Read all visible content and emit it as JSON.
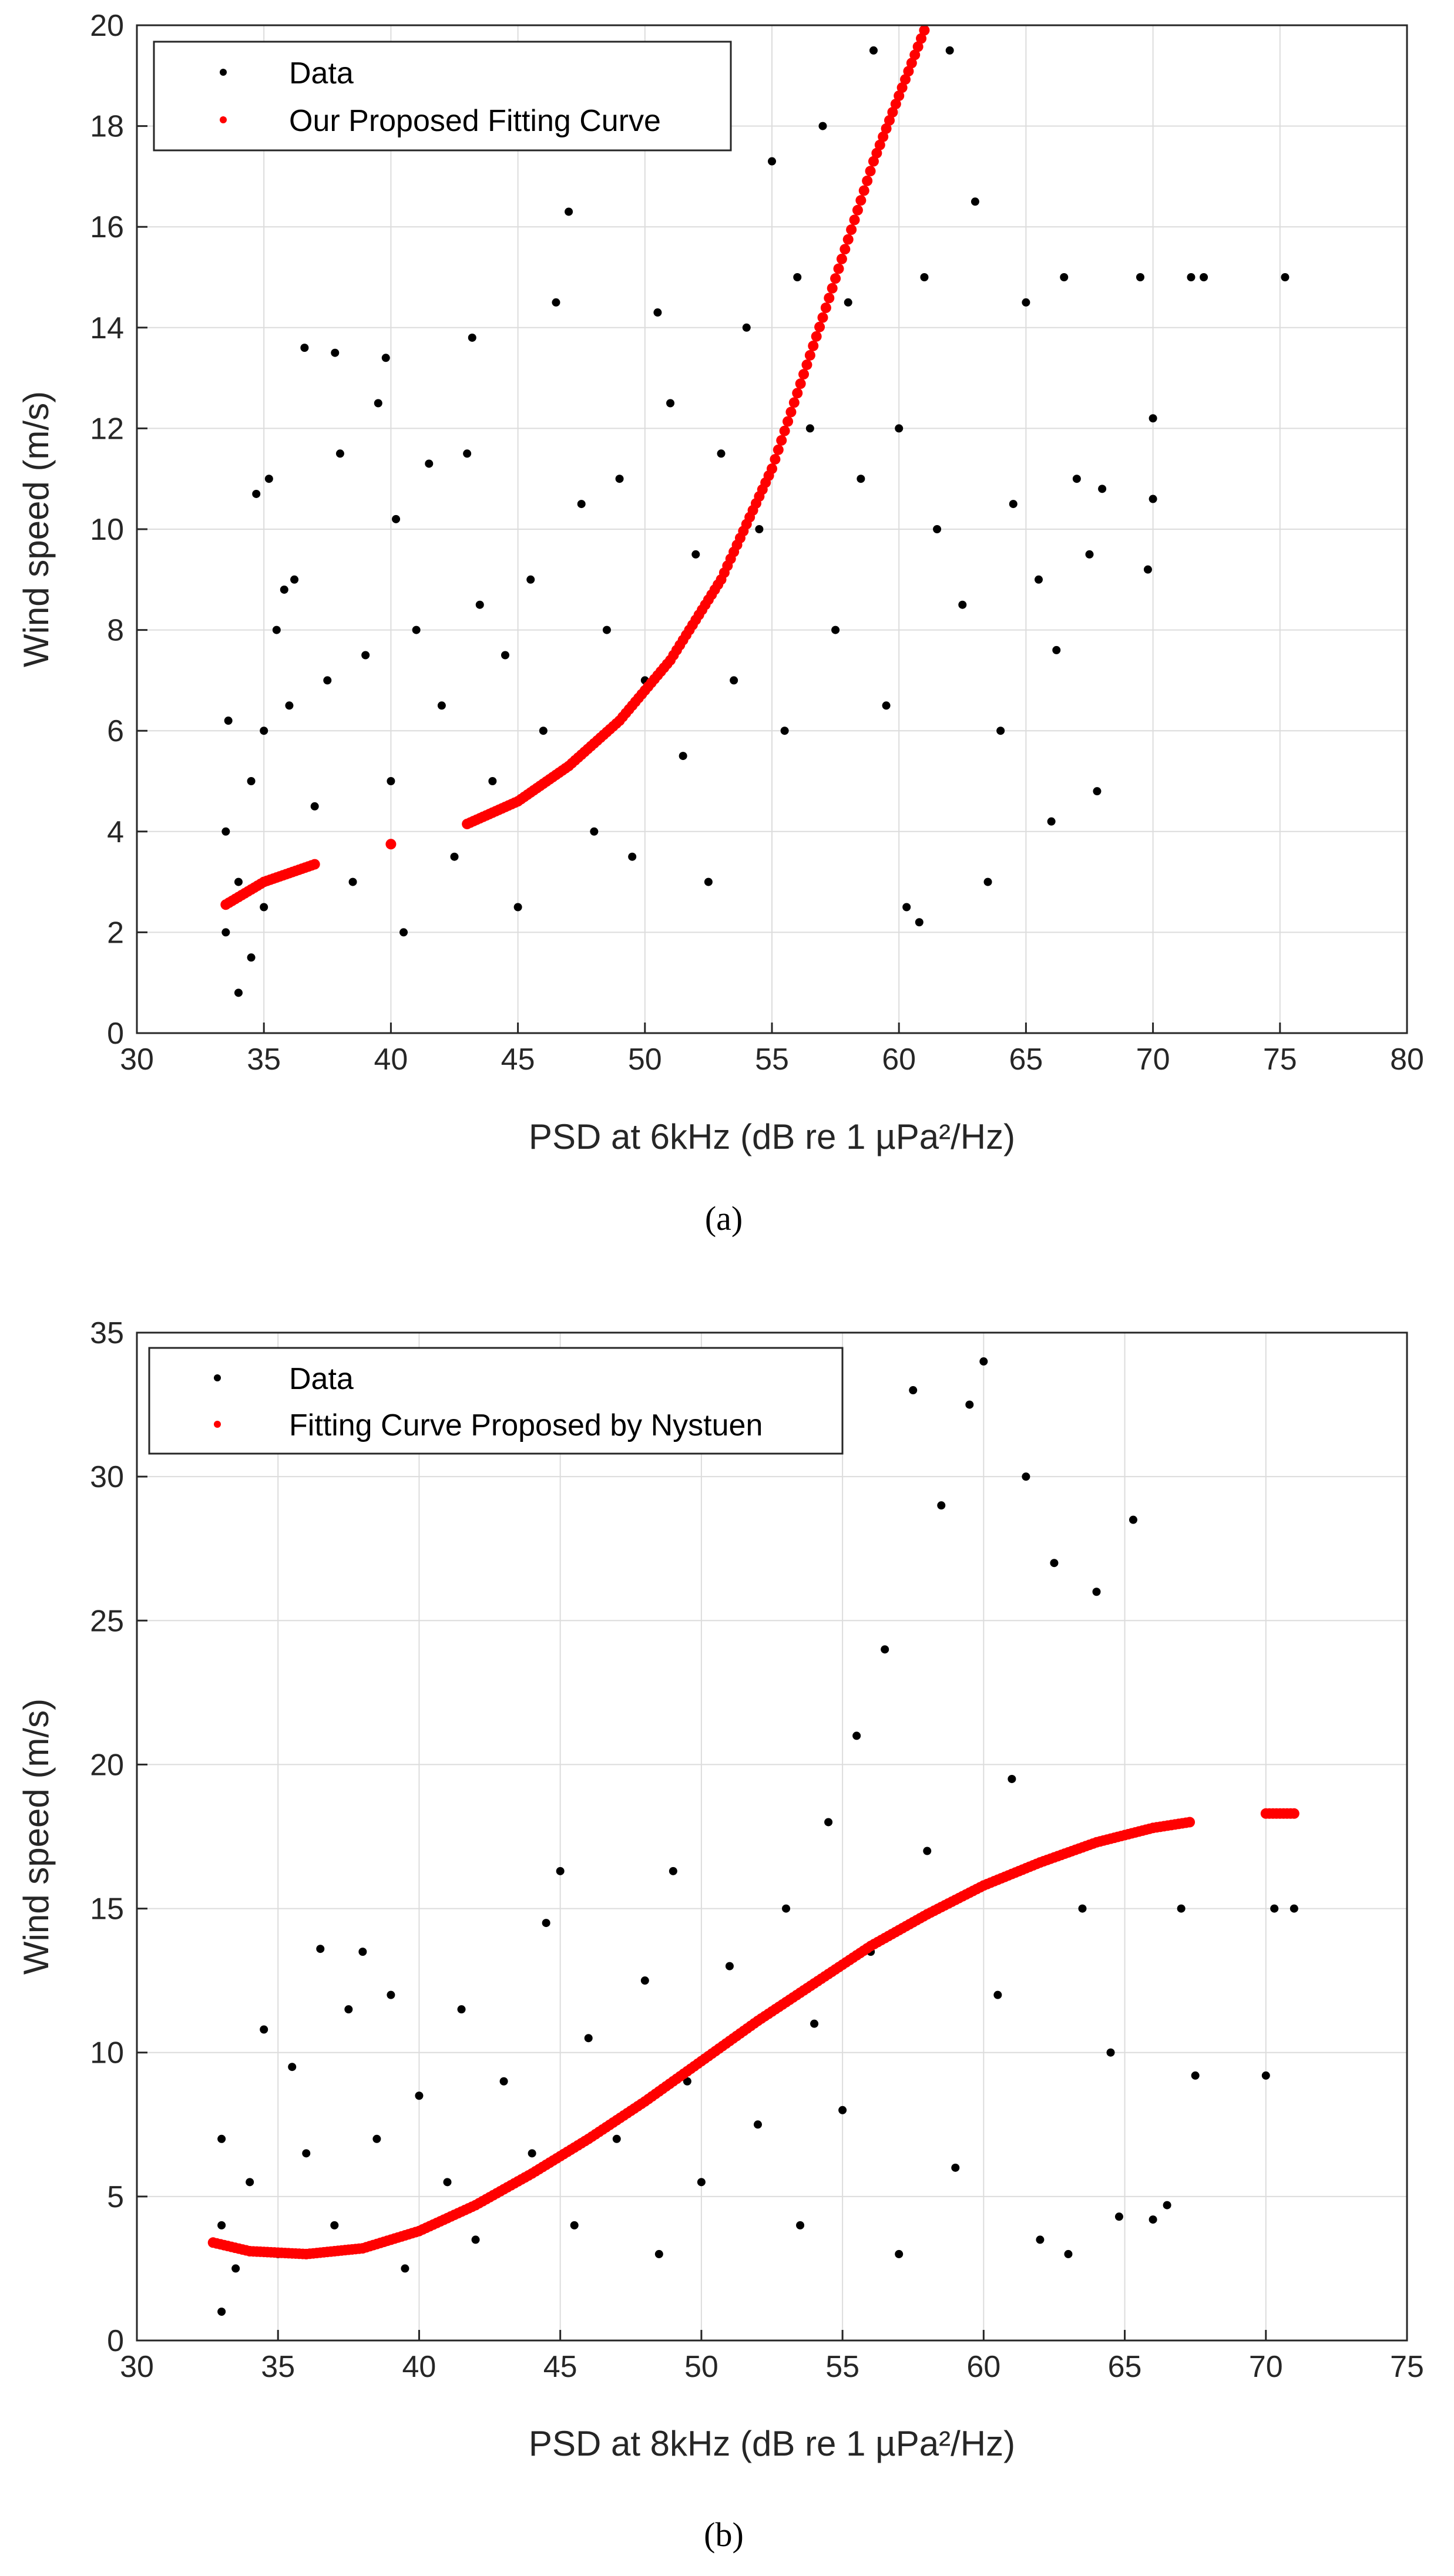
{
  "chart_data": [
    {
      "type": "scatter",
      "panel_label": "(a)",
      "xlabel": "PSD at 6kHz (dB re 1 µPa²/Hz)",
      "ylabel": "Wind speed (m/s)",
      "xlim": [
        30,
        80
      ],
      "ylim": [
        0,
        20
      ],
      "xticks": [
        30,
        35,
        40,
        45,
        50,
        55,
        60,
        65,
        70,
        75,
        80
      ],
      "yticks": [
        0,
        2,
        4,
        6,
        8,
        10,
        12,
        14,
        16,
        18,
        20
      ],
      "grid": true,
      "legend_position": "top-left",
      "series": [
        {
          "name": "Data",
          "color": "#000000",
          "marker": "dot",
          "points": [
            [
              33.5,
              2.0
            ],
            [
              33.5,
              4.0
            ],
            [
              33.6,
              6.2
            ],
            [
              34.0,
              0.8
            ],
            [
              34.0,
              3.0
            ],
            [
              34.5,
              5.0
            ],
            [
              34.5,
              1.5
            ],
            [
              35.0,
              2.5
            ],
            [
              35.0,
              6.0
            ],
            [
              34.7,
              10.7
            ],
            [
              35.2,
              11.0
            ],
            [
              35.5,
              8.0
            ],
            [
              35.8,
              8.8
            ],
            [
              36.0,
              6.5
            ],
            [
              36.2,
              9.0
            ],
            [
              36.6,
              13.6
            ],
            [
              37.0,
              4.5
            ],
            [
              37.5,
              7.0
            ],
            [
              37.8,
              13.5
            ],
            [
              38.0,
              11.5
            ],
            [
              38.5,
              3.0
            ],
            [
              39.0,
              7.5
            ],
            [
              39.5,
              12.5
            ],
            [
              39.8,
              13.4
            ],
            [
              40.0,
              5.0
            ],
            [
              40.2,
              10.2
            ],
            [
              40.5,
              2.0
            ],
            [
              41.0,
              8.0
            ],
            [
              41.5,
              11.3
            ],
            [
              42.0,
              6.5
            ],
            [
              42.5,
              3.5
            ],
            [
              43.0,
              11.5
            ],
            [
              43.2,
              13.8
            ],
            [
              43.5,
              8.5
            ],
            [
              44.0,
              5.0
            ],
            [
              44.5,
              7.5
            ],
            [
              45.0,
              2.5
            ],
            [
              45.5,
              9.0
            ],
            [
              46.0,
              6.0
            ],
            [
              46.5,
              14.5
            ],
            [
              47.0,
              16.3
            ],
            [
              47.5,
              10.5
            ],
            [
              48.0,
              4.0
            ],
            [
              48.5,
              8.0
            ],
            [
              49.0,
              11.0
            ],
            [
              49.5,
              3.5
            ],
            [
              50.0,
              7.0
            ],
            [
              50.5,
              14.3
            ],
            [
              51.0,
              12.5
            ],
            [
              51.5,
              5.5
            ],
            [
              52.0,
              9.5
            ],
            [
              52.5,
              3.0
            ],
            [
              53.0,
              11.5
            ],
            [
              53.5,
              7.0
            ],
            [
              54.0,
              14.0
            ],
            [
              54.5,
              10.0
            ],
            [
              55.0,
              17.3
            ],
            [
              55.5,
              6.0
            ],
            [
              56.0,
              15.0
            ],
            [
              56.5,
              12.0
            ],
            [
              57.0,
              18.0
            ],
            [
              57.5,
              8.0
            ],
            [
              58.0,
              14.5
            ],
            [
              58.5,
              11.0
            ],
            [
              59.0,
              19.5
            ],
            [
              59.5,
              6.5
            ],
            [
              60.0,
              12.0
            ],
            [
              60.3,
              2.5
            ],
            [
              60.8,
              2.2
            ],
            [
              61.0,
              15.0
            ],
            [
              61.5,
              10.0
            ],
            [
              62.0,
              19.5
            ],
            [
              62.5,
              8.5
            ],
            [
              63.0,
              16.5
            ],
            [
              63.5,
              3.0
            ],
            [
              64.0,
              6.0
            ],
            [
              64.5,
              10.5
            ],
            [
              65.0,
              14.5
            ],
            [
              65.5,
              9.0
            ],
            [
              66.0,
              4.2
            ],
            [
              66.2,
              7.6
            ],
            [
              66.5,
              15.0
            ],
            [
              67.0,
              11.0
            ],
            [
              67.5,
              9.5
            ],
            [
              67.8,
              4.8
            ],
            [
              68.0,
              10.8
            ],
            [
              69.5,
              15.0
            ],
            [
              69.8,
              9.2
            ],
            [
              70.0,
              10.6
            ],
            [
              70.0,
              12.2
            ],
            [
              71.5,
              15.0
            ],
            [
              72.0,
              15.0
            ],
            [
              75.2,
              15.0
            ]
          ]
        },
        {
          "name": "Our Proposed Fitting Curve",
          "color": "#ff0000",
          "marker": "dot",
          "points": [
            [
              33.5,
              2.55
            ],
            [
              35,
              3.0
            ],
            [
              37,
              3.35
            ],
            [
              40,
              3.75
            ],
            [
              43,
              4.15
            ],
            [
              45,
              4.6
            ],
            [
              47,
              5.3
            ],
            [
              49,
              6.2
            ],
            [
              51,
              7.4
            ],
            [
              53,
              9.0
            ],
            [
              55,
              11.2
            ],
            [
              57,
              14.2
            ],
            [
              59,
              17.3
            ],
            [
              61,
              19.9
            ]
          ]
        }
      ]
    },
    {
      "type": "scatter",
      "panel_label": "(b)",
      "xlabel": "PSD at 8kHz (dB re 1 µPa²/Hz)",
      "ylabel": "Wind speed (m/s)",
      "xlim": [
        30,
        75
      ],
      "ylim": [
        0,
        35
      ],
      "xticks": [
        30,
        35,
        40,
        45,
        50,
        55,
        60,
        65,
        70,
        75
      ],
      "yticks": [
        0,
        5,
        10,
        15,
        20,
        25,
        30,
        35
      ],
      "grid": true,
      "legend_position": "top-left",
      "series": [
        {
          "name": "Data",
          "color": "#000000",
          "marker": "dot",
          "points": [
            [
              33.0,
              1.0
            ],
            [
              33.0,
              4.0
            ],
            [
              33.0,
              7.0
            ],
            [
              33.5,
              2.5
            ],
            [
              34.0,
              5.5
            ],
            [
              34.5,
              10.8
            ],
            [
              35.0,
              3.0
            ],
            [
              35.5,
              9.5
            ],
            [
              36.0,
              6.5
            ],
            [
              36.5,
              13.6
            ],
            [
              37.0,
              4.0
            ],
            [
              37.5,
              11.5
            ],
            [
              38.0,
              13.5
            ],
            [
              38.5,
              7.0
            ],
            [
              39.0,
              12.0
            ],
            [
              39.5,
              2.5
            ],
            [
              40.0,
              8.5
            ],
            [
              41.0,
              5.5
            ],
            [
              41.5,
              11.5
            ],
            [
              42.0,
              3.5
            ],
            [
              43.0,
              9.0
            ],
            [
              44.0,
              6.5
            ],
            [
              44.5,
              14.5
            ],
            [
              45.0,
              16.3
            ],
            [
              45.5,
              4.0
            ],
            [
              46.0,
              10.5
            ],
            [
              47.0,
              7.0
            ],
            [
              48.0,
              12.5
            ],
            [
              48.5,
              3.0
            ],
            [
              49.0,
              16.3
            ],
            [
              49.5,
              9.0
            ],
            [
              50.0,
              5.5
            ],
            [
              51.0,
              13.0
            ],
            [
              52.0,
              7.5
            ],
            [
              53.0,
              15.0
            ],
            [
              53.5,
              4.0
            ],
            [
              54.0,
              11.0
            ],
            [
              54.5,
              18.0
            ],
            [
              55.0,
              8.0
            ],
            [
              55.5,
              21.0
            ],
            [
              56.0,
              13.5
            ],
            [
              56.5,
              24.0
            ],
            [
              57.0,
              3.0
            ],
            [
              57.5,
              33.0
            ],
            [
              58.0,
              17.0
            ],
            [
              58.5,
              29.0
            ],
            [
              59.0,
              6.0
            ],
            [
              59.5,
              32.5
            ],
            [
              60.0,
              34.0
            ],
            [
              60.5,
              12.0
            ],
            [
              61.0,
              19.5
            ],
            [
              61.5,
              30.0
            ],
            [
              62.0,
              3.5
            ],
            [
              62.5,
              27.0
            ],
            [
              63.0,
              3.0
            ],
            [
              63.5,
              15.0
            ],
            [
              64.0,
              26.0
            ],
            [
              64.5,
              10.0
            ],
            [
              64.8,
              4.3
            ],
            [
              65.3,
              28.5
            ],
            [
              66.0,
              4.2
            ],
            [
              66.5,
              4.7
            ],
            [
              67.0,
              15.0
            ],
            [
              67.5,
              9.2
            ],
            [
              70.0,
              9.2
            ],
            [
              70.3,
              15.0
            ],
            [
              71.0,
              15.0
            ]
          ]
        },
        {
          "name": "Fitting Curve Proposed by Nystuen",
          "color": "#ff0000",
          "marker": "dot",
          "points": [
            [
              32.7,
              3.4
            ],
            [
              34,
              3.1
            ],
            [
              36,
              3.0
            ],
            [
              38,
              3.2
            ],
            [
              40,
              3.8
            ],
            [
              42,
              4.7
            ],
            [
              44,
              5.8
            ],
            [
              46,
              7.0
            ],
            [
              48,
              8.3
            ],
            [
              50,
              9.7
            ],
            [
              52,
              11.1
            ],
            [
              54,
              12.4
            ],
            [
              56,
              13.7
            ],
            [
              58,
              14.8
            ],
            [
              60,
              15.8
            ],
            [
              62,
              16.6
            ],
            [
              64,
              17.3
            ],
            [
              66,
              17.8
            ],
            [
              67.3,
              18.0
            ],
            [
              70,
              18.3
            ],
            [
              70.5,
              18.3
            ],
            [
              71,
              18.3
            ]
          ]
        }
      ]
    }
  ]
}
